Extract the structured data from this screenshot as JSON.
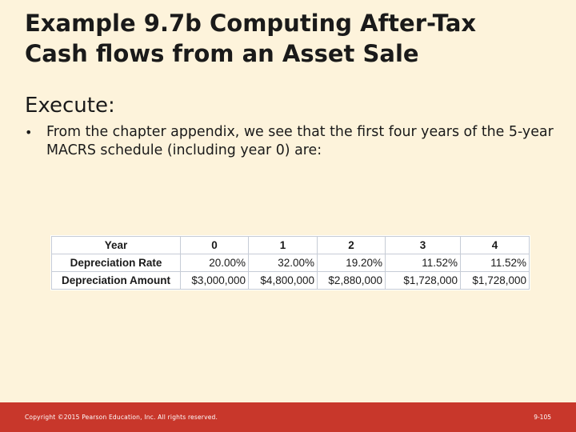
{
  "slide": {
    "title_line1": "Example 9.7b Computing After-Tax",
    "title_line2": "Cash flows from an Asset Sale",
    "subheading": "Execute:",
    "bullets": [
      {
        "mark": "•",
        "text": "From the chapter appendix, we see that the first four years of the 5-year MACRS schedule (including year 0) are:"
      }
    ]
  },
  "table": {
    "header": {
      "label": "Year",
      "cells": [
        "0",
        "1",
        "2",
        "3",
        "4"
      ]
    },
    "rows": [
      {
        "label": "Depreciation Rate",
        "cells": [
          "20.00%",
          "32.00%",
          "19.20%",
          "11.52%",
          "11.52%"
        ]
      },
      {
        "label": "Depreciation Amount",
        "cells": [
          "$3,000,000",
          "$4,800,000",
          "$2,880,000",
          "$1,728,000",
          "$1,728,000"
        ]
      }
    ]
  },
  "footer": {
    "copyright": "Copyright ©2015 Pearson Education, Inc. All rights reserved.",
    "page_number": "9-105"
  },
  "colors": {
    "background": "#fdf3db",
    "footer_bar": "#c8372b"
  }
}
